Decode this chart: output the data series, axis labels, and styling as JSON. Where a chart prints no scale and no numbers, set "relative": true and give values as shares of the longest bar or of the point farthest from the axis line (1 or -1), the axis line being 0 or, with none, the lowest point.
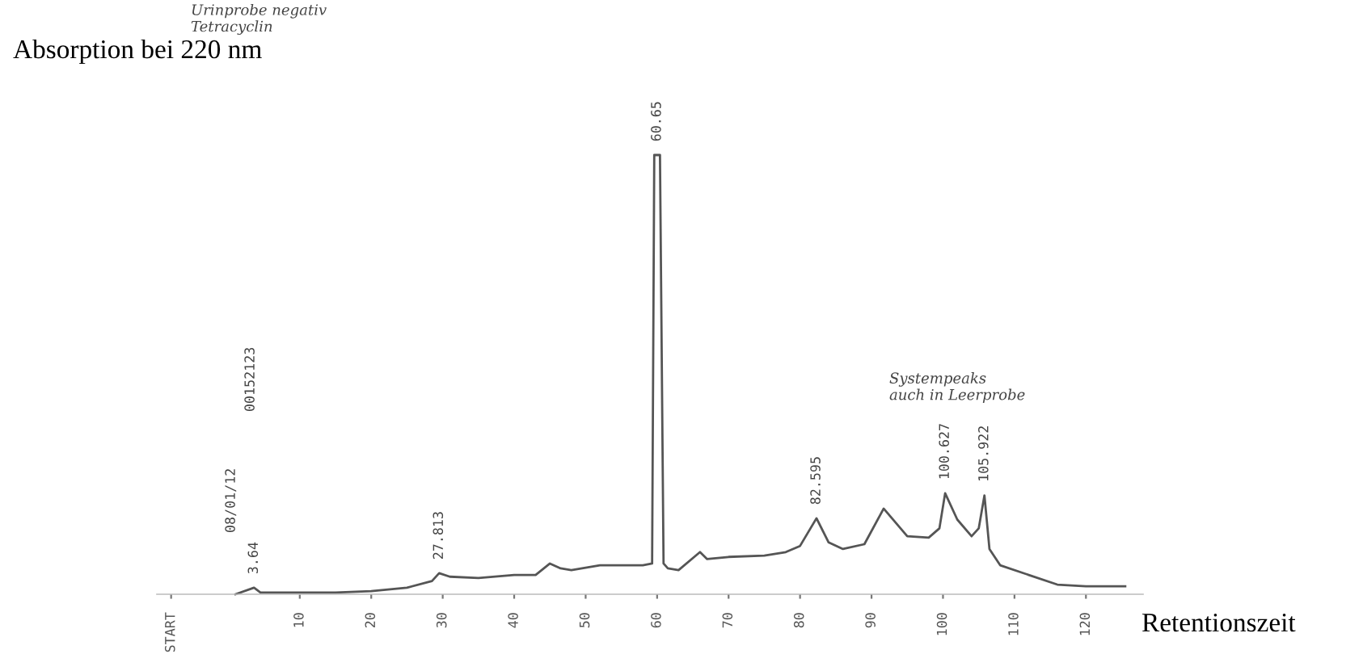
{
  "chart_data": {
    "type": "line",
    "relative": true,
    "color": "#555555",
    "ylabel": "Absorption bei 220 nm",
    "xlabel": "Retentionszeit",
    "xlim": [
      -10,
      128
    ],
    "xticks": [
      {
        "value": -8,
        "label": "START"
      },
      10,
      20,
      30,
      40,
      50,
      60,
      70,
      80,
      90,
      100,
      110,
      120
    ],
    "x": [
      1,
      3.6,
      4.5,
      15,
      20,
      25,
      28.5,
      29.5,
      31,
      35,
      40,
      43,
      45,
      46.5,
      48,
      52,
      55,
      58,
      59.3,
      59.6,
      60.4,
      60.9,
      61.5,
      63,
      66,
      67,
      70,
      75,
      78,
      80,
      82.3,
      84,
      86,
      89,
      91.7,
      95,
      98,
      99.5,
      100.3,
      102,
      104,
      105,
      105.8,
      106.5,
      108,
      112,
      116,
      120,
      125.5
    ],
    "values": [
      0,
      0.015,
      0.004,
      0.004,
      0.007,
      0.015,
      0.03,
      0.048,
      0.04,
      0.037,
      0.044,
      0.044,
      0.07,
      0.059,
      0.055,
      0.066,
      0.066,
      0.066,
      0.07,
      1,
      1,
      0.07,
      0.059,
      0.055,
      0.096,
      0.08,
      0.085,
      0.088,
      0.096,
      0.11,
      0.173,
      0.118,
      0.103,
      0.114,
      0.195,
      0.132,
      0.129,
      0.15,
      0.23,
      0.17,
      0.132,
      0.15,
      0.225,
      0.103,
      0.066,
      0.044,
      0.022,
      0.018,
      0.018
    ],
    "annotations": [
      "08/01/12",
      "00152123",
      "Urinprobe negativ\nTetracyclin",
      "Systempeaks\nauch in Leerprobe",
      {
        "text": "3.64",
        "x": 3.6,
        "y": 0.015
      },
      {
        "text": "27.813",
        "x": 29.5,
        "y": 0.048
      },
      {
        "text": "60.65",
        "x": 60,
        "y": 1
      },
      {
        "text": "82.595",
        "x": 82.3,
        "y": 0.173
      },
      {
        "text": "100.627",
        "x": 100.3,
        "y": 0.23
      },
      {
        "text": "105.922",
        "x": 105.8,
        "y": 0.225
      }
    ]
  }
}
